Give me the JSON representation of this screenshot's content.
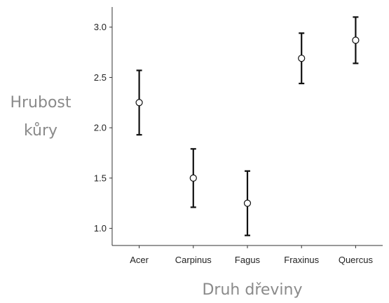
{
  "chart_data": {
    "type": "scatter",
    "xlabel": "Druh dřeviny",
    "ylabel_lines": [
      "Hrubost",
      "kůry"
    ],
    "categories": [
      "Acer",
      "Carpinus",
      "Fagus",
      "Fraxinus",
      "Quercus"
    ],
    "means": [
      2.25,
      1.5,
      1.25,
      2.69,
      2.87
    ],
    "lower": [
      1.93,
      1.21,
      0.93,
      2.44,
      2.64
    ],
    "upper": [
      2.57,
      1.79,
      1.57,
      2.94,
      3.1
    ],
    "y_ticks": [
      "1.0",
      "1.5",
      "2.0",
      "2.5",
      "3.0"
    ],
    "ylim": [
      0.83,
      3.2
    ],
    "grid": false,
    "colors": {
      "errorbar": "#111111",
      "marker_fill": "#ffffff",
      "marker_stroke": "#111111",
      "axis": "#333333"
    }
  }
}
